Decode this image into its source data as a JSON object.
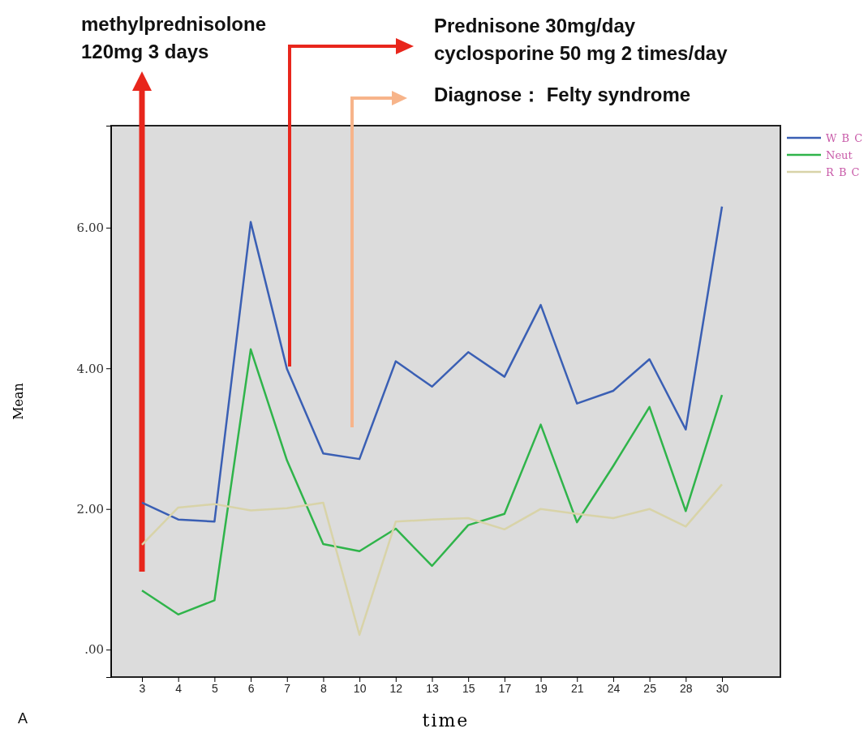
{
  "chart_data": {
    "type": "line",
    "xlabel": "time",
    "ylabel": "Mean",
    "categories": [
      "3",
      "4",
      "5",
      "6",
      "7",
      "8",
      "10",
      "12",
      "13",
      "15",
      "17",
      "19",
      "21",
      "24",
      "25",
      "28",
      "30"
    ],
    "series": [
      {
        "name": "W B C",
        "color": "#3a5fb4",
        "values": [
          2.09,
          1.85,
          1.82,
          6.08,
          3.99,
          2.79,
          2.71,
          4.1,
          3.74,
          4.23,
          3.88,
          4.9,
          3.5,
          3.68,
          4.13,
          3.13,
          6.3
        ]
      },
      {
        "name": "Neut",
        "color": "#2fb44a",
        "values": [
          0.84,
          0.5,
          0.7,
          4.27,
          2.69,
          1.5,
          1.4,
          1.72,
          1.19,
          1.77,
          1.93,
          3.2,
          1.81,
          2.61,
          3.45,
          1.97,
          3.62
        ]
      },
      {
        "name": "R B C",
        "color": "#d8d3a8",
        "values": [
          1.49,
          2.02,
          2.07,
          1.98,
          2.01,
          2.09,
          0.21,
          1.82,
          1.85,
          1.87,
          1.71,
          2.0,
          1.93,
          1.87,
          2.0,
          1.75,
          2.35
        ]
      }
    ],
    "ylim": [
      -0.39,
      7.45
    ],
    "yticks": [
      {
        "value": 0,
        "label": ".00"
      },
      {
        "value": 2,
        "label": "2.00"
      },
      {
        "value": 4,
        "label": "4.00"
      },
      {
        "value": 6,
        "label": "6.00"
      }
    ],
    "legend": "right",
    "grid": false,
    "marker": "none",
    "line_style": "solid",
    "annotations": [
      "methylprednisolone\n120mg  3 days",
      "Prednisone 30mg/day\ncyclosporine 50 mg 2 times/day",
      "Diagnose：  Felty  syndrome",
      "A"
    ]
  }
}
